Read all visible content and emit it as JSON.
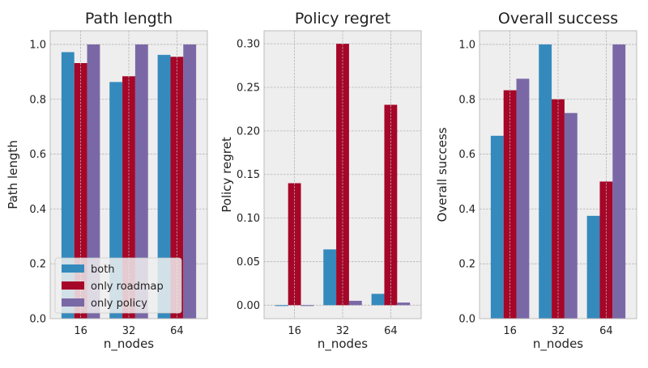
{
  "chart_data": [
    {
      "type": "bar",
      "title": "Path length",
      "xlabel": "n_nodes",
      "ylabel": "Path length",
      "categories": [
        "16",
        "32",
        "64"
      ],
      "ylim": [
        0,
        1.05
      ],
      "yticks": [
        0.0,
        0.2,
        0.4,
        0.6,
        0.8,
        1.0
      ],
      "ytick_labels": [
        "0.0",
        "0.2",
        "0.4",
        "0.6",
        "0.8",
        "1.0"
      ],
      "grid": true,
      "legend": "lower-left",
      "series": [
        {
          "name": "both",
          "color": "#348abd",
          "values": [
            0.972,
            0.863,
            0.962
          ]
        },
        {
          "name": "only roadmap",
          "color": "#a60628",
          "values": [
            0.932,
            0.884,
            0.955
          ]
        },
        {
          "name": "only policy",
          "color": "#7a68a6",
          "values": [
            1.0,
            1.0,
            1.0
          ]
        }
      ]
    },
    {
      "type": "bar",
      "title": "Policy regret",
      "xlabel": "n_nodes",
      "ylabel": "Policy regret",
      "categories": [
        "16",
        "32",
        "64"
      ],
      "ylim": [
        -0.0155,
        0.315
      ],
      "yticks": [
        0.0,
        0.05,
        0.1,
        0.15,
        0.2,
        0.25,
        0.3
      ],
      "ytick_labels": [
        "0.00",
        "0.05",
        "0.10",
        "0.15",
        "0.20",
        "0.25",
        "0.30"
      ],
      "grid": true,
      "series": [
        {
          "name": "both",
          "color": "#348abd",
          "values": [
            -0.001,
            0.064,
            0.013
          ]
        },
        {
          "name": "only roadmap",
          "color": "#a60628",
          "values": [
            0.14,
            0.3,
            0.23
          ]
        },
        {
          "name": "only policy",
          "color": "#7a68a6",
          "values": [
            -0.001,
            0.005,
            0.003
          ]
        }
      ]
    },
    {
      "type": "bar",
      "title": "Overall success",
      "xlabel": "n_nodes",
      "ylabel": "Overall success",
      "categories": [
        "16",
        "32",
        "64"
      ],
      "ylim": [
        0,
        1.05
      ],
      "yticks": [
        0.0,
        0.2,
        0.4,
        0.6,
        0.8,
        1.0
      ],
      "ytick_labels": [
        "0.0",
        "0.2",
        "0.4",
        "0.6",
        "0.8",
        "1.0"
      ],
      "grid": true,
      "series": [
        {
          "name": "both",
          "color": "#348abd",
          "values": [
            0.667,
            1.0,
            0.375
          ]
        },
        {
          "name": "only roadmap",
          "color": "#a60628",
          "values": [
            0.833,
            0.8,
            0.5
          ]
        },
        {
          "name": "only policy",
          "color": "#7a68a6",
          "values": [
            0.875,
            0.75,
            1.0
          ]
        }
      ]
    }
  ]
}
